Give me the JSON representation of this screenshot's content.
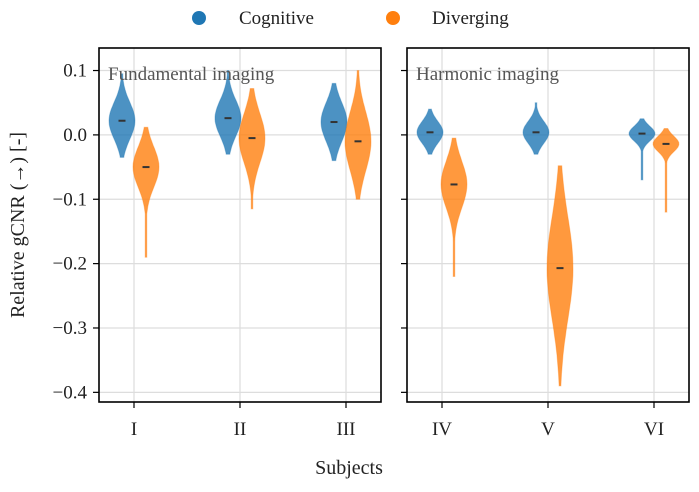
{
  "chart_data": {
    "type": "violin",
    "xlabel": "Subjects",
    "ylabel": "Relative gCNR (→) [-]",
    "ylim": [
      -0.415,
      0.135
    ],
    "yticks": [
      0.1,
      0.0,
      -0.1,
      -0.2,
      -0.3,
      -0.4
    ],
    "ytick_labels": [
      "0.1",
      "0.0",
      "−0.1",
      "−0.2",
      "−0.3",
      "−0.4"
    ],
    "grid": true,
    "shared_y": true,
    "legend": {
      "placement": "top-center",
      "entries": [
        {
          "label": "Cognitive",
          "color": "#1f77b4"
        },
        {
          "label": "Diverging",
          "color": "#ff7f0e"
        }
      ]
    },
    "panels": [
      {
        "title": "Fundamental imaging",
        "categories": [
          "I",
          "II",
          "III"
        ],
        "series": [
          {
            "name": "Cognitive",
            "color": "#1f77b4",
            "medians": [
              0.022,
              0.026,
              0.02
            ],
            "ranges": [
              [
                -0.035,
                0.095
              ],
              [
                -0.03,
                0.1
              ],
              [
                -0.04,
                0.08
              ]
            ]
          },
          {
            "name": "Diverging",
            "color": "#ff7f0e",
            "medians": [
              -0.05,
              -0.005,
              -0.01
            ],
            "ranges": [
              [
                -0.19,
                0.012
              ],
              [
                -0.115,
                0.072
              ],
              [
                -0.1,
                0.1
              ]
            ]
          }
        ]
      },
      {
        "title": "Harmonic imaging",
        "categories": [
          "IV",
          "V",
          "VI"
        ],
        "series": [
          {
            "name": "Cognitive",
            "color": "#1f77b4",
            "medians": [
              0.004,
              0.004,
              0.002
            ],
            "ranges": [
              [
                -0.03,
                0.04
              ],
              [
                -0.03,
                0.05
              ],
              [
                -0.07,
                0.025
              ]
            ]
          },
          {
            "name": "Diverging",
            "color": "#ff7f0e",
            "medians": [
              -0.077,
              -0.207,
              -0.014
            ],
            "ranges": [
              [
                -0.22,
                -0.005
              ],
              [
                -0.39,
                -0.048
              ],
              [
                -0.12,
                0.01
              ]
            ]
          }
        ]
      }
    ]
  }
}
